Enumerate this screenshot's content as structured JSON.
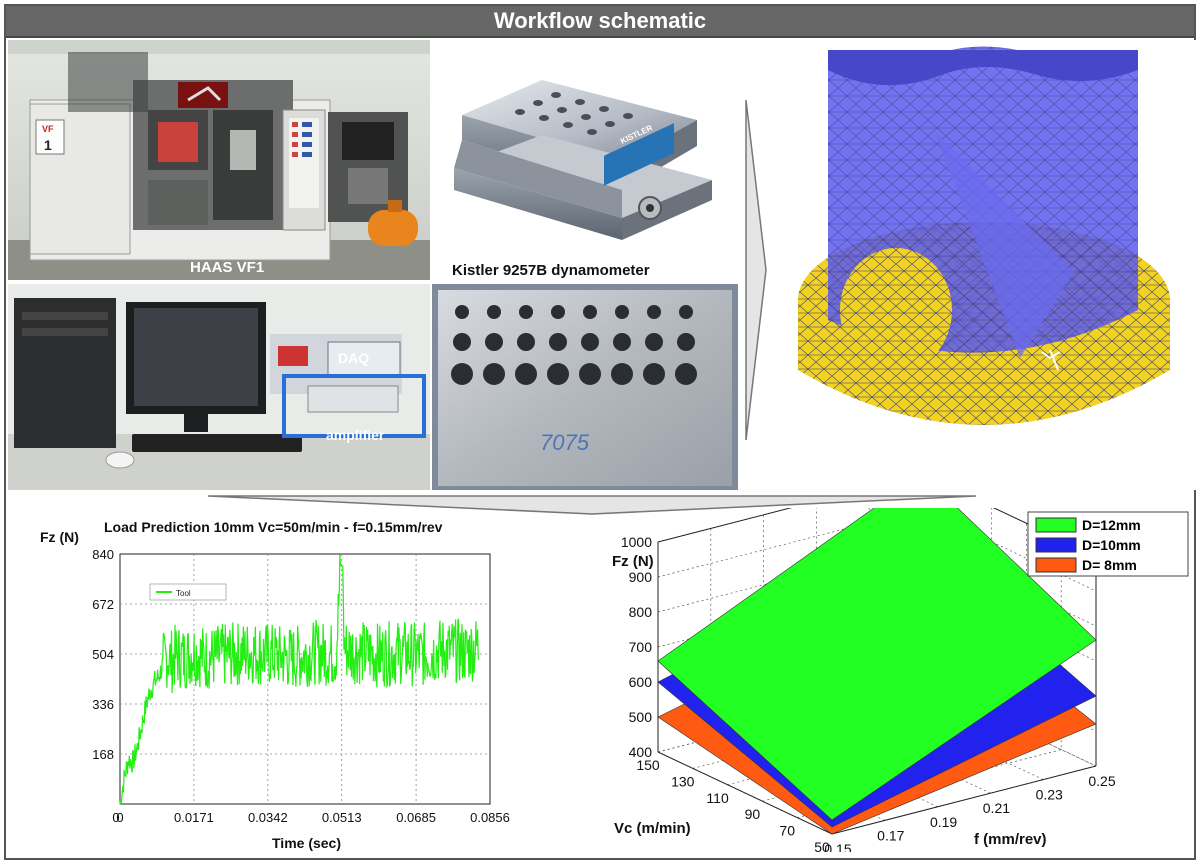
{
  "banner": {
    "title": "Workflow schematic"
  },
  "photos": {
    "machine_label": "HAAS VF1",
    "machine_door_badge": "VF",
    "machine_door_number": "1",
    "dynamometer_label": "Kistler 9257B  dynamometer",
    "dynamometer_brand": "KISTLER",
    "daq_label": "DAQ",
    "amplifier_label": "amplifier",
    "plate_marking": "7075"
  },
  "colors": {
    "banner": "#666666",
    "signal": "#22ee11",
    "mesh_blue": "#5a5aee",
    "mesh_yellow": "#f2d321",
    "surf_12": "#22ff22",
    "surf_10": "#2222ee",
    "surf_8": "#ff5a11"
  },
  "chart_data": [
    {
      "type": "line",
      "title": "Load Prediction 10mm  Vc=50m/min - f=0.15mm/rev",
      "ylabel": "Fz (N)",
      "xlabel": "Time (sec)",
      "xlim": [
        0,
        0.0856
      ],
      "ylim": [
        0,
        840
      ],
      "xticks": [
        "0",
        "0.0171",
        "0.0342",
        "0.0513",
        "0.0685",
        "0.0856"
      ],
      "yticks": [
        "168",
        "336",
        "504",
        "672",
        "840"
      ],
      "y_zero_label": "0",
      "legend": "Tool",
      "series": [
        {
          "name": "Tool",
          "x": [
            0,
            0.001,
            0.002,
            0.003,
            0.004,
            0.005,
            0.006,
            0.007,
            0.008,
            0.009,
            0.01,
            0.011,
            0.012,
            0.013,
            0.015,
            0.017,
            0.02,
            0.025,
            0.03,
            0.035,
            0.04,
            0.045,
            0.05,
            0.051,
            0.052,
            0.055,
            0.06,
            0.065,
            0.07,
            0.075,
            0.08,
            0.083
          ],
          "y": [
            0,
            90,
            150,
            140,
            190,
            260,
            330,
            380,
            410,
            430,
            470,
            500,
            480,
            500,
            490,
            510,
            490,
            500,
            510,
            500,
            490,
            510,
            500,
            790,
            520,
            510,
            500,
            510,
            500,
            520,
            510,
            530
          ]
        }
      ]
    },
    {
      "type": "surface",
      "zlabel": "Fz (N)",
      "xlabel": "Vc (m/min)",
      "ylabel": "f (mm/rev)",
      "vc_ticks": [
        150,
        130,
        110,
        90,
        70,
        50
      ],
      "f_ticks": [
        0.15,
        0.17,
        0.19,
        0.21,
        0.23,
        0.25
      ],
      "fz_ticks": [
        400,
        500,
        600,
        700,
        800,
        900,
        1000
      ],
      "vc_range": [
        50,
        150
      ],
      "f_range": [
        0.15,
        0.25
      ],
      "fz_range": [
        400,
        1000
      ],
      "legend": [
        "D=12mm",
        "D=10mm",
        "D=   8mm"
      ],
      "series": [
        {
          "name": "D=12mm",
          "corners": {
            "vc150_f015": 660,
            "vc50_f015": 440,
            "vc50_f025": 760,
            "vc150_f025": 1000
          }
        },
        {
          "name": "D=10mm",
          "corners": {
            "vc150_f015": 600,
            "vc50_f015": 420,
            "vc50_f025": 600,
            "vc150_f025": 800
          }
        },
        {
          "name": "D=   8mm",
          "corners": {
            "vc150_f015": 500,
            "vc50_f015": 400,
            "vc50_f025": 520,
            "vc150_f025": 680
          }
        }
      ]
    }
  ]
}
